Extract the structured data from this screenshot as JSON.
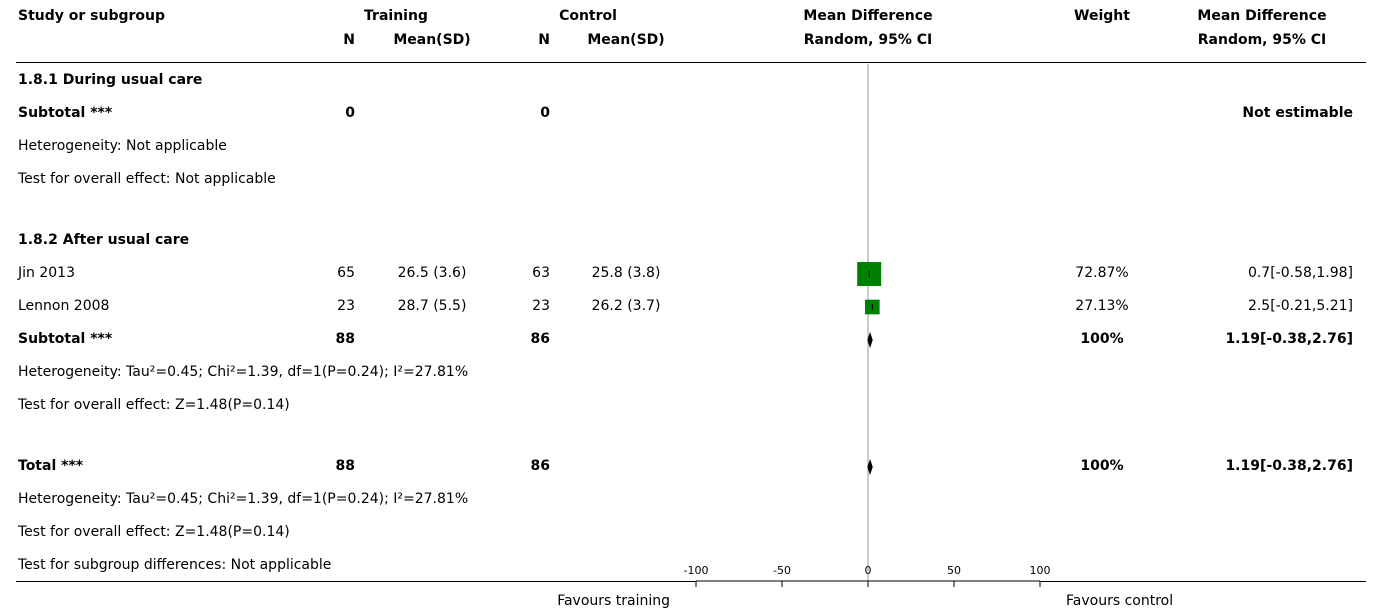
{
  "header": {
    "study": "Study or subgroup",
    "group1": "Training",
    "group2": "Control",
    "n": "N",
    "mean_sd": "Mean(SD)",
    "plot_title": "Mean Difference",
    "plot_subtitle": "Random, 95% CI",
    "weight": "Weight",
    "md_title": "Mean Difference",
    "md_subtitle": "Random, 95% CI"
  },
  "subgroup1": {
    "title": "1.8.1 During usual care",
    "subtotal_label": "Subtotal ***",
    "n1": "0",
    "n2": "0",
    "estimate": "Not estimable",
    "heterogeneity": "Heterogeneity: Not applicable",
    "overall": "Test for overall effect: Not applicable"
  },
  "subgroup2": {
    "title": "1.8.2 After usual care",
    "subtotal_label": "Subtotal ***",
    "n1": "88",
    "n2": "86",
    "weight": "100%",
    "estimate": "1.19[-0.38,2.76]",
    "heterogeneity": "Heterogeneity: Tau²=0.45; Chi²=1.39, df=1(P=0.24); I²=27.81%",
    "overall": "Test for overall effect: Z=1.48(P=0.14)"
  },
  "total": {
    "label": "Total ***",
    "n1": "88",
    "n2": "86",
    "weight": "100%",
    "estimate": "1.19[-0.38,2.76]",
    "heterogeneity": "Heterogeneity: Tau²=0.45; Chi²=1.39, df=1(P=0.24); I²=27.81%",
    "overall": "Test for overall effect: Z=1.48(P=0.14)",
    "subgroup_diff": "Test for subgroup differences: Not applicable"
  },
  "footer": {
    "favours_left": "Favours training",
    "favours_right": "Favours control"
  },
  "colors": {
    "study_marker": "#008000",
    "diamond": "#000000"
  },
  "chart_data": {
    "type": "forest",
    "title": "Mean Difference",
    "subtitle": "Random, 95% CI",
    "xlim": [
      -100,
      100
    ],
    "ticks": [
      -100,
      -50,
      0,
      50,
      100
    ],
    "studies": [
      {
        "name": "Jin 2013",
        "n1": "65",
        "mean_sd1": "26.5 (3.6)",
        "n2": "63",
        "mean_sd2": "25.8 (3.8)",
        "md": 0.7,
        "lo": -0.58,
        "hi": 1.98,
        "weight_pct": 72.87,
        "weight": "72.87%",
        "ci_text": "0.7[-0.58,1.98]"
      },
      {
        "name": "Lennon 2008",
        "n1": "23",
        "mean_sd1": "28.7 (5.5)",
        "n2": "23",
        "mean_sd2": "26.2 (3.7)",
        "md": 2.5,
        "lo": -0.21,
        "hi": 5.21,
        "weight_pct": 27.13,
        "weight": "27.13%",
        "ci_text": "2.5[-0.21,5.21]"
      }
    ],
    "pooled": [
      {
        "name": "Subtotal",
        "md": 1.19,
        "lo": -0.38,
        "hi": 2.76
      },
      {
        "name": "Total",
        "md": 1.19,
        "lo": -0.38,
        "hi": 2.76
      }
    ]
  }
}
